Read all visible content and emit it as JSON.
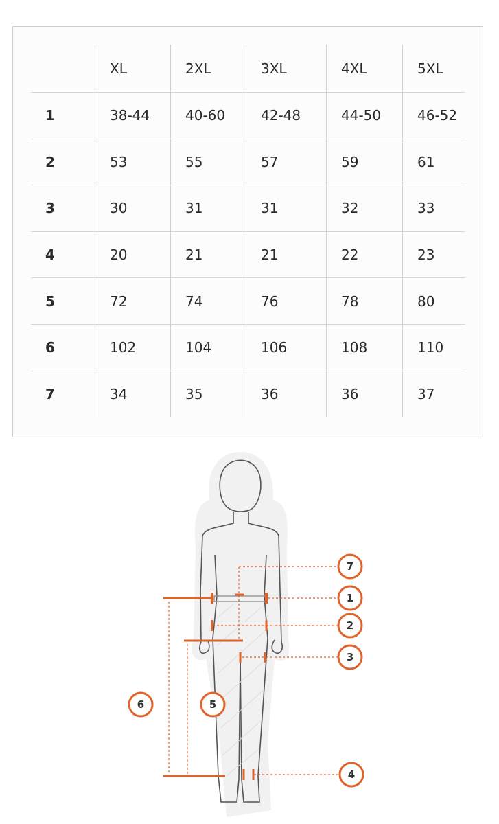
{
  "size_table": {
    "headers": [
      "",
      "XL",
      "2XL",
      "3XL",
      "4XL",
      "5XL"
    ],
    "rows": [
      {
        "label": "1",
        "values": [
          "38-44",
          "40-60",
          "42-48",
          "44-50",
          "46-52"
        ]
      },
      {
        "label": "2",
        "values": [
          "53",
          "55",
          "57",
          "59",
          "61"
        ]
      },
      {
        "label": "3",
        "values": [
          "30",
          "31",
          "31",
          "32",
          "33"
        ]
      },
      {
        "label": "4",
        "values": [
          "20",
          "21",
          "21",
          "22",
          "23"
        ]
      },
      {
        "label": "5",
        "values": [
          "72",
          "74",
          "76",
          "78",
          "80"
        ]
      },
      {
        "label": "6",
        "values": [
          "102",
          "104",
          "106",
          "108",
          "110"
        ]
      },
      {
        "label": "7",
        "values": [
          "34",
          "35",
          "36",
          "36",
          "37"
        ]
      }
    ]
  },
  "diagram": {
    "markers": [
      "7",
      "1",
      "2",
      "3",
      "4",
      "5",
      "6"
    ],
    "accent_color": "#e0632a",
    "figure_color": "#555555"
  }
}
